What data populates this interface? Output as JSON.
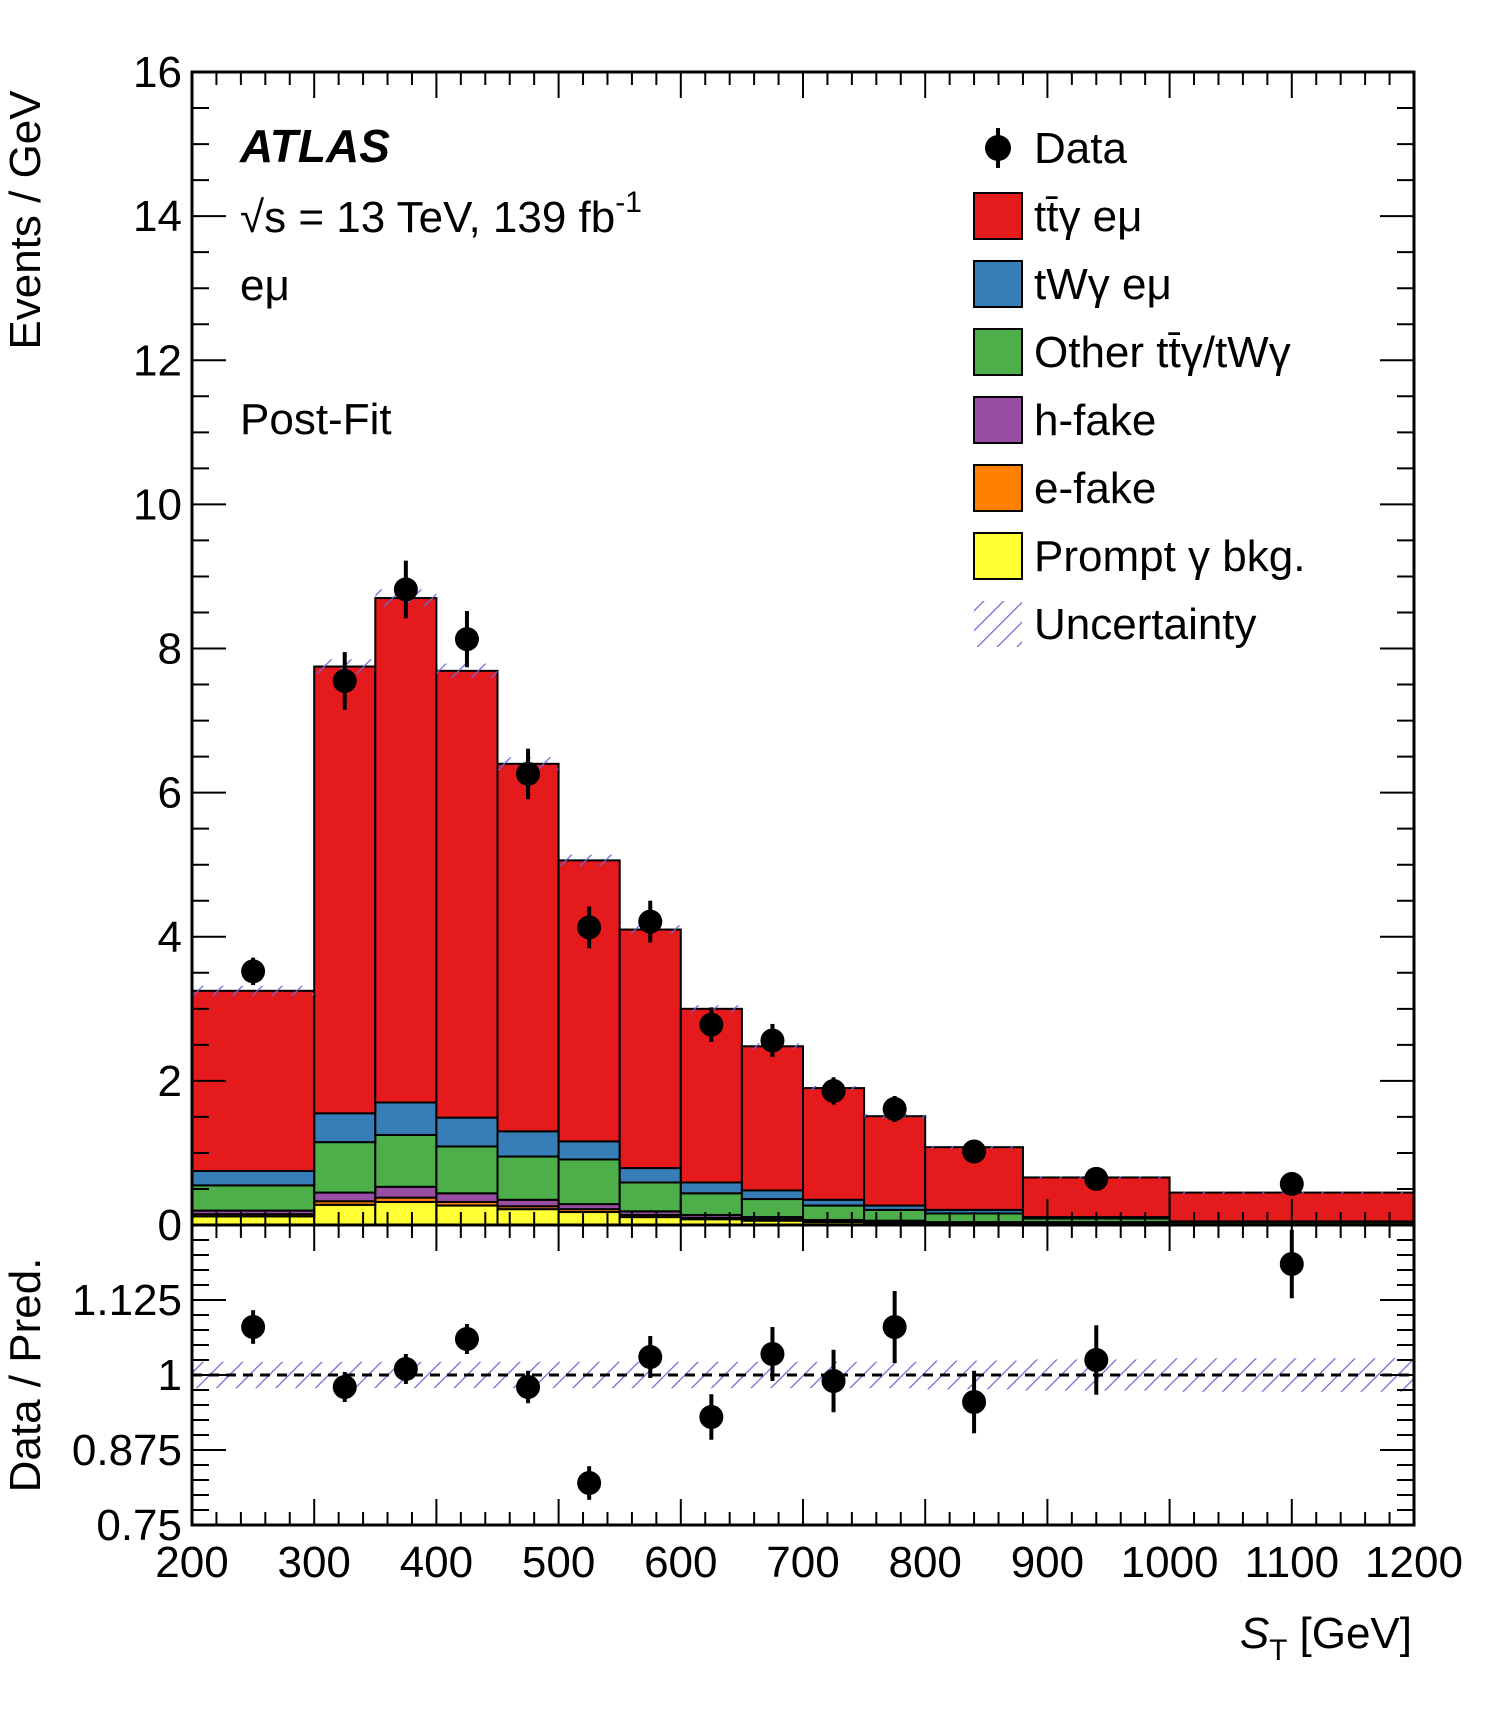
{
  "chart_data": [
    {
      "type": "bar",
      "stacked": true,
      "panel": "main",
      "xlabel": "S_T [GeV]",
      "xlabel_main": "S",
      "xlabel_sub": "T",
      "xlabel_unit": "[GeV]",
      "ylabel": "Events / GeV",
      "xlim": [
        200,
        1200
      ],
      "ylim": [
        0,
        16
      ],
      "grid": false,
      "legend_position": "top-right",
      "bin_edges": [
        200,
        300,
        350,
        400,
        450,
        500,
        550,
        600,
        650,
        700,
        750,
        800,
        880,
        1000,
        1200
      ],
      "x_ticks": [
        "200",
        "300",
        "400",
        "500",
        "600",
        "700",
        "800",
        "900",
        "1000",
        "1100",
        "1200"
      ],
      "y_ticks": [
        "0",
        "2",
        "4",
        "6",
        "8",
        "10",
        "12",
        "14",
        "16"
      ],
      "series": [
        {
          "name": "Prompt γ bkg.",
          "color": "#ffff33",
          "values": [
            0.12,
            0.28,
            0.32,
            0.27,
            0.22,
            0.18,
            0.11,
            0.08,
            0.06,
            0.04,
            0.03,
            0.02,
            0.02,
            0.01
          ]
        },
        {
          "name": "e-fake",
          "color": "#ff7f00",
          "values": [
            0.03,
            0.05,
            0.06,
            0.05,
            0.04,
            0.04,
            0.03,
            0.02,
            0.02,
            0.01,
            0.01,
            0.01,
            0.01,
            0.0
          ]
        },
        {
          "name": "h-fake",
          "color": "#984ea3",
          "values": [
            0.05,
            0.12,
            0.15,
            0.12,
            0.09,
            0.07,
            0.05,
            0.04,
            0.03,
            0.02,
            0.02,
            0.01,
            0.01,
            0.0
          ]
        },
        {
          "name": "Other tt̄γ/tWγ",
          "color": "#4daf4a",
          "values": [
            0.35,
            0.7,
            0.72,
            0.65,
            0.6,
            0.62,
            0.4,
            0.3,
            0.25,
            0.2,
            0.15,
            0.12,
            0.05,
            0.03
          ]
        },
        {
          "name": "tWγ eμ",
          "color": "#377eb8",
          "values": [
            0.2,
            0.4,
            0.45,
            0.4,
            0.35,
            0.25,
            0.2,
            0.15,
            0.12,
            0.08,
            0.06,
            0.05,
            0.02,
            0.01
          ]
        },
        {
          "name": "tt̄γ eμ",
          "color": "#e41a1c",
          "values": [
            2.5,
            6.2,
            7.0,
            6.2,
            5.1,
            3.9,
            3.31,
            2.41,
            2.0,
            1.55,
            1.24,
            0.87,
            0.55,
            0.4
          ]
        }
      ],
      "totals": [
        3.25,
        7.75,
        8.7,
        7.69,
        6.4,
        5.06,
        4.1,
        3.0,
        2.48,
        1.9,
        1.51,
        1.08,
        0.66,
        0.45
      ],
      "uncertainty": [
        0.07,
        0.1,
        0.12,
        0.1,
        0.09,
        0.08,
        0.06,
        0.05,
        0.04,
        0.03,
        0.03,
        0.02,
        0.015,
        0.012
      ],
      "data": {
        "name": "Data",
        "x": [
          250,
          325,
          375,
          425,
          475,
          525,
          575,
          625,
          675,
          725,
          775,
          840,
          940,
          1100
        ],
        "y": [
          3.52,
          7.55,
          8.82,
          8.13,
          6.26,
          4.13,
          4.21,
          2.78,
          2.56,
          1.86,
          1.61,
          1.02,
          0.64,
          0.57
        ],
        "err": [
          0.19,
          0.4,
          0.4,
          0.39,
          0.35,
          0.29,
          0.29,
          0.24,
          0.23,
          0.19,
          0.18,
          0.12,
          0.07,
          0.05
        ]
      },
      "legend": [
        {
          "label": "Data",
          "kind": "marker"
        },
        {
          "label": "tt̄γ eμ",
          "kind": "box",
          "color": "#e41a1c"
        },
        {
          "label": "tWγ eμ",
          "kind": "box",
          "color": "#377eb8"
        },
        {
          "label": "Other tt̄γ/tWγ",
          "kind": "box",
          "color": "#4daf4a"
        },
        {
          "label": "h-fake",
          "kind": "box",
          "color": "#984ea3"
        },
        {
          "label": "e-fake",
          "kind": "box",
          "color": "#ff7f00"
        },
        {
          "label": "Prompt γ bkg.",
          "kind": "box",
          "color": "#ffff33"
        },
        {
          "label": "Uncertainty",
          "kind": "hatch"
        }
      ],
      "annotations": {
        "experiment": "ATLAS",
        "energy_prefix": "√s = 13 TeV, 139 fb",
        "energy_sup": "-1",
        "channel": "eμ",
        "fit": "Post-Fit"
      }
    },
    {
      "type": "scatter",
      "panel": "ratio",
      "ylabel": "Data / Pred.",
      "xlim": [
        200,
        1200
      ],
      "ylim": [
        0.75,
        1.25
      ],
      "y_ticks": [
        "0.75",
        "0.875",
        "1",
        "1.125"
      ],
      "y_tick_values": [
        0.75,
        0.875,
        1.0,
        1.125
      ],
      "reference_line": 1.0,
      "x": [
        250,
        325,
        375,
        425,
        475,
        525,
        575,
        625,
        675,
        725,
        775,
        840,
        940,
        1100
      ],
      "y": [
        1.08,
        0.98,
        1.01,
        1.06,
        0.98,
        0.82,
        1.03,
        0.93,
        1.035,
        0.99,
        1.08,
        0.955,
        1.025,
        1.185
      ],
      "err": [
        0.028,
        0.025,
        0.025,
        0.025,
        0.027,
        0.028,
        0.035,
        0.038,
        0.045,
        0.052,
        0.06,
        0.052,
        0.058,
        0.057
      ],
      "uncertainty": [
        0.022,
        0.022,
        0.022,
        0.022,
        0.022,
        0.022,
        0.022,
        0.022,
        0.022,
        0.022,
        0.022,
        0.024,
        0.026,
        0.028
      ]
    }
  ]
}
